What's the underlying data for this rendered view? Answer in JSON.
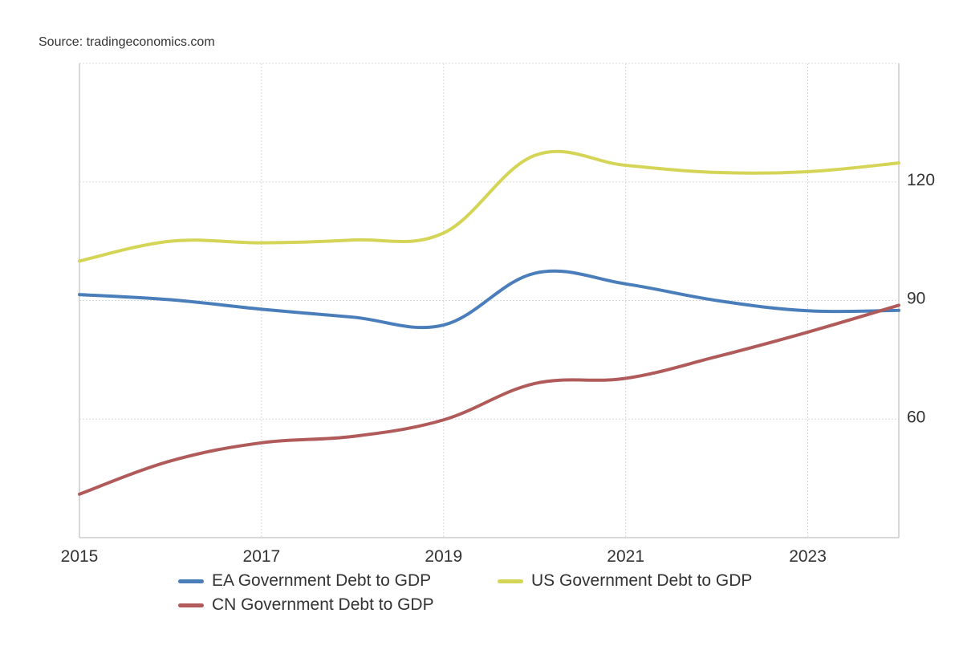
{
  "source_text": "Source: tradingeconomics.com",
  "colors": {
    "ea": "#4a7ebb",
    "us": "#d4d456",
    "cn": "#b05a5a",
    "grid": "#d9d9d9",
    "axis": "#cccccc",
    "text": "#333333"
  },
  "chart_data": {
    "type": "line",
    "title": "",
    "xlabel": "",
    "ylabel": "",
    "x": [
      2015,
      2016,
      2017,
      2018,
      2019,
      2020,
      2021,
      2022,
      2023,
      2024
    ],
    "x_ticks": [
      "2015",
      "2017",
      "2019",
      "2021",
      "2023"
    ],
    "y_ticks": [
      "60",
      "90",
      "120"
    ],
    "ylim": [
      30,
      150
    ],
    "xlim": [
      2015,
      2024
    ],
    "y_axis_side": "right",
    "grid": true,
    "legend_position": "bottom",
    "series": [
      {
        "name": "EA Government Debt to GDP",
        "color": "#4a7ebb",
        "values": [
          91.5,
          90.2,
          87.8,
          85.8,
          83.8,
          96.9,
          94.2,
          90.0,
          87.4,
          87.5
        ]
      },
      {
        "name": "US Government Debt to GDP",
        "color": "#d4d456",
        "values": [
          100.0,
          105.0,
          104.6,
          105.3,
          107.1,
          126.7,
          124.2,
          122.4,
          122.6,
          124.8
        ]
      },
      {
        "name": "CN Government Debt to GDP",
        "color": "#b05a5a",
        "values": [
          41.0,
          49.4,
          54.0,
          55.6,
          59.8,
          69.0,
          70.3,
          75.8,
          82.0,
          88.8
        ]
      }
    ]
  }
}
